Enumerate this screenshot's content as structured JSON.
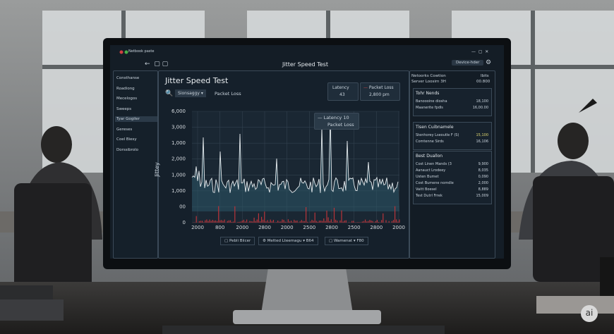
{
  "window": {
    "app_name": "Netbook paste",
    "toolbar_title": "Jitter Speed Test",
    "device_button": "Device-hder"
  },
  "sidebar": [
    "Consthanse",
    "Roadiong",
    "Mecelogos",
    "Sweeps",
    "Tyar Gogiler",
    "Gereses",
    "Coel Biesy",
    "Dorssibrolo"
  ],
  "main": {
    "heading": "Jitter Speed Test",
    "search_dropdown": "Sionsaggy",
    "search_label": "Packet Loss",
    "latency_label": "Latency",
    "latency_value": "43",
    "loss_label": "Packet Loss",
    "loss_value": "2,800 pm",
    "legend": [
      "Latency 10",
      "Packet Loss"
    ],
    "y_axis_title": "Jittey",
    "y_axis_labels": [
      "6,000",
      "3,000",
      "1,000",
      "2,000",
      "1,000",
      "1,000",
      "00",
      "0"
    ],
    "x_axis_labels": [
      "2000",
      "800",
      "2000",
      "2800",
      "2000",
      "2500",
      "2800",
      "2500",
      "2800",
      "2000"
    ],
    "buttons": [
      "Pebli Biicer",
      "Metted Lteemagu",
      "B64",
      "Wamenat",
      "F80"
    ]
  },
  "side_panel": {
    "header": [
      "Netoorks Cowtion",
      "Ibits"
    ],
    "server": [
      "Server Loosirn 3H",
      "00.800"
    ],
    "cards": [
      {
        "title": "Tohr Nends",
        "rows": [
          [
            "Banoooine diosha",
            "18,100"
          ],
          [
            "Maanerite fpdls",
            "16,00.00"
          ]
        ]
      },
      {
        "title": "Tisen Cuibnamele",
        "rows": [
          [
            "Stenhorey Lseoutle F (S)",
            "15,100"
          ],
          [
            "Comtenne Sirds",
            "16,106"
          ]
        ]
      },
      {
        "title": "Best Duallon",
        "rows": [
          [
            "Cost Linen Mands (3",
            "9,900"
          ],
          [
            "Aanauct Lrodeey",
            "8,035"
          ],
          [
            "Usten Bumet",
            "0,090"
          ],
          [
            "Cost Bumene nomdle",
            "2,000"
          ],
          [
            "Vaitt Boesel",
            "8,889"
          ],
          [
            "Test Dutrl Frrek",
            "15,009"
          ]
        ]
      }
    ]
  },
  "watermark": "ai"
}
